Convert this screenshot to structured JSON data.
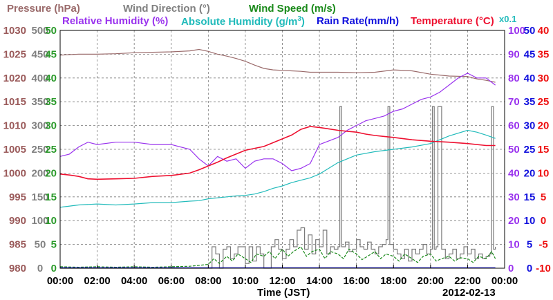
{
  "chart_data": {
    "type": "line",
    "legend": {
      "pressure": "Pressure (hPa)",
      "wind_direction": "Wind Direction (°)",
      "wind_speed": "Wind Speed (m/s)",
      "relative_humidity": "Relative Humidity (%)",
      "absolute_humidity": "Absolute Humidity (g/m",
      "absolute_humidity_sup": "3",
      "absolute_humidity_tail": ")",
      "rain_rate": "Rain Rate(mm/h)",
      "temperature": "Temperature (°C)",
      "rain_scale_note": "x0.1"
    },
    "xlabel": "Time (JST)",
    "date_label": "2012-02-13",
    "x_ticks": [
      "00:00",
      "02:00",
      "04:00",
      "06:00",
      "08:00",
      "10:00",
      "12:00",
      "14:00",
      "16:00",
      "18:00",
      "20:00",
      "22:00",
      "00:00"
    ],
    "axes": {
      "pressure": {
        "range": [
          980,
          1030
        ],
        "ticks": [
          "1030",
          "1025",
          "1020",
          "1015",
          "1010",
          "1005",
          "1000",
          "995",
          "990",
          "985",
          "980"
        ],
        "color": "#9a5a5a"
      },
      "wind_direction": {
        "range": [
          0,
          500
        ],
        "ticks": [
          "500",
          "450",
          "400",
          "350",
          "300",
          "250",
          "200",
          "150",
          "100",
          "50",
          "0"
        ],
        "color": "#808080"
      },
      "wind_speed": {
        "range": [
          0,
          50
        ],
        "ticks": [
          "50",
          "45",
          "40",
          "35",
          "30",
          "25",
          "20",
          "15",
          "10",
          "5",
          "0"
        ],
        "color": "#2a9a2a"
      },
      "relative_humidity": {
        "range": [
          0,
          100
        ],
        "ticks": [
          "100",
          "90",
          "80",
          "70",
          "60",
          "50",
          "40",
          "30",
          "20",
          "10",
          "0"
        ],
        "color": "#9a33ee"
      },
      "rain_rate": {
        "range": [
          0,
          50
        ],
        "ticks": [
          "50",
          "45",
          "40",
          "35",
          "30",
          "25",
          "20",
          "15",
          "10",
          "5",
          "0"
        ],
        "color": "#1010dd"
      },
      "temperature": {
        "range": [
          -10,
          40
        ],
        "ticks": [
          "40",
          "35",
          "30",
          "25",
          "20",
          "15",
          "10",
          "5",
          "0",
          "-5",
          "-10"
        ],
        "color": "#ee1010"
      }
    },
    "colors": {
      "pressure": "#9a6a6a",
      "wind_direction": "#7a7a7a",
      "wind_speed": "#1a8a1a",
      "relative_humidity": "#9a33ee",
      "absolute_humidity": "#22bbbb",
      "rain_rate": "#1010dd",
      "temperature": "#ee1030",
      "abs_humidity_label": "#22bbbb"
    },
    "series": [
      {
        "key": "pressure",
        "axis": "pressure",
        "x": [
          0,
          1,
          2,
          3,
          4,
          5,
          6,
          7,
          7.5,
          8,
          8.5,
          9,
          9.5,
          10,
          10.5,
          11,
          11.5,
          12,
          12.5,
          13,
          13.5,
          14,
          15,
          16,
          17,
          18,
          19,
          20,
          21,
          22,
          22.5,
          23,
          23.5
        ],
        "y": [
          1024.8,
          1025,
          1025,
          1025.1,
          1025.3,
          1025.4,
          1025.5,
          1025.7,
          1026,
          1025.6,
          1025,
          1024.6,
          1024.1,
          1023.5,
          1022.7,
          1022,
          1021.7,
          1021.6,
          1021.5,
          1021.4,
          1021.2,
          1021.2,
          1021.2,
          1021.1,
          1021.2,
          1021.7,
          1021.5,
          1020.8,
          1020.4,
          1020.3,
          1019.8,
          1019.5,
          1019.1
        ]
      },
      {
        "key": "relative_humidity",
        "axis": "relative_humidity",
        "x": [
          0,
          0.5,
          1,
          1.5,
          2,
          3,
          4,
          5,
          6,
          7,
          7.5,
          8,
          8.5,
          9,
          9.5,
          10,
          10.5,
          11,
          11.5,
          12,
          12.5,
          13,
          13.5,
          14,
          15,
          15.5,
          16,
          16.5,
          17,
          17.5,
          18,
          18.5,
          19,
          19.5,
          20,
          20.5,
          21,
          21.5,
          22,
          22.5,
          23,
          23.5
        ],
        "y": [
          47,
          48,
          51,
          53,
          52,
          53,
          53,
          52,
          52,
          50,
          46,
          43,
          47,
          45,
          46,
          42,
          45,
          46,
          46,
          44,
          41,
          42,
          44,
          52,
          55,
          58,
          60,
          62,
          63,
          64,
          66,
          67,
          69,
          71,
          72,
          74,
          77,
          80,
          82,
          80,
          80,
          77
        ]
      },
      {
        "key": "absolute_humidity",
        "axis": "wind_direction",
        "x": [
          0,
          1,
          2,
          3,
          4,
          5,
          6,
          7,
          7.5,
          8,
          8.5,
          9,
          9.5,
          10,
          10.5,
          11,
          11.5,
          12,
          12.5,
          13,
          13.5,
          14,
          14.5,
          15,
          15.5,
          16,
          17,
          18,
          19,
          20,
          21,
          22,
          22.5,
          23,
          23.5
        ],
        "y": [
          128,
          133,
          135,
          133,
          135,
          138,
          138,
          141,
          142,
          146,
          148,
          150,
          152,
          153,
          156,
          161,
          168,
          173,
          180,
          185,
          190,
          198,
          210,
          222,
          230,
          238,
          245,
          250,
          255,
          262,
          278,
          290,
          286,
          280,
          273
        ]
      },
      {
        "key": "temperature",
        "axis": "temperature",
        "x": [
          0,
          0.5,
          1,
          1.5,
          2,
          3,
          4,
          5,
          6,
          7,
          7.5,
          8,
          8.5,
          9,
          9.5,
          10,
          10.5,
          11,
          11.5,
          12,
          12.5,
          13,
          13.5,
          14,
          14.5,
          15,
          15.5,
          16,
          16.5,
          17,
          17.5,
          18,
          19,
          20,
          21,
          22,
          23,
          23.5
        ],
        "y": [
          9.8,
          9.6,
          9.3,
          8.8,
          8.7,
          8.8,
          8.9,
          9.3,
          9.5,
          10,
          10.7,
          11.5,
          12.3,
          13.2,
          14,
          14.8,
          15.2,
          15.6,
          16.4,
          17.2,
          18,
          19.2,
          19.8,
          19.6,
          19.3,
          19,
          18.8,
          18.6,
          18.2,
          17.9,
          17.7,
          17.5,
          17,
          16.7,
          16.5,
          16.2,
          15.8,
          15.8
        ]
      },
      {
        "key": "wind_direction",
        "axis": "wind_direction",
        "x": [
          0,
          8,
          8.2,
          8.4,
          8.6,
          8.8,
          9,
          9.2,
          9.4,
          9.6,
          9.8,
          10,
          10.2,
          10.4,
          10.6,
          10.8,
          11,
          11.2,
          11.4,
          11.6,
          11.8,
          12,
          12.2,
          12.4,
          12.6,
          12.8,
          13,
          13.2,
          13.4,
          13.6,
          13.8,
          14,
          14.2,
          14.4,
          14.6,
          14.8,
          15,
          15.1,
          15.2,
          15.4,
          15.6,
          15.8,
          16,
          16.2,
          16.4,
          16.6,
          16.8,
          17,
          17.2,
          17.4,
          17.6,
          17.7,
          17.8,
          18,
          18.2,
          18.4,
          18.6,
          18.8,
          19,
          19.2,
          19.4,
          19.6,
          19.8,
          20,
          20.1,
          20.2,
          20.3,
          20.4,
          20.6,
          20.8,
          21,
          21.2,
          21.4,
          21.6,
          21.8,
          22,
          22.2,
          22.4,
          22.6,
          22.8,
          23,
          23.2,
          23.3,
          23.4,
          23.5
        ],
        "y": [
          0,
          0,
          45,
          30,
          0,
          40,
          45,
          20,
          30,
          45,
          45,
          10,
          45,
          15,
          45,
          30,
          0,
          0,
          45,
          60,
          40,
          20,
          40,
          60,
          45,
          80,
          85,
          40,
          70,
          30,
          60,
          45,
          80,
          30,
          45,
          40,
          45,
          340,
          45,
          55,
          35,
          40,
          60,
          45,
          40,
          55,
          40,
          30,
          45,
          50,
          60,
          340,
          50,
          40,
          30,
          20,
          40,
          15,
          40,
          30,
          40,
          50,
          30,
          40,
          340,
          40,
          45,
          340,
          40,
          20,
          30,
          40,
          20,
          30,
          45,
          30,
          40,
          20,
          30,
          20,
          25,
          30,
          340,
          40,
          45
        ]
      },
      {
        "key": "wind_speed",
        "axis": "wind_speed",
        "x": [
          0,
          1,
          2,
          3,
          4,
          5,
          6,
          7,
          8,
          8.3,
          8.6,
          9,
          9.3,
          9.6,
          10,
          10.3,
          10.6,
          11,
          11.3,
          11.6,
          12,
          12.3,
          12.6,
          13,
          13.3,
          13.6,
          14,
          14.3,
          14.6,
          15,
          15.3,
          15.6,
          16,
          16.3,
          16.6,
          17,
          17.3,
          17.6,
          18,
          18.3,
          18.6,
          19,
          19.3,
          19.6,
          20,
          20.3,
          20.6,
          21,
          21.3,
          21.6,
          22,
          22.3,
          22.6,
          23,
          23.3,
          23.5
        ],
        "y": [
          0.3,
          0.2,
          0.3,
          0.2,
          0.3,
          0.2,
          0.3,
          0.4,
          0.8,
          2,
          1,
          2.5,
          1.5,
          3,
          2,
          1.2,
          3,
          2.5,
          3.5,
          2,
          4,
          2.5,
          3.5,
          4.5,
          2.5,
          3.5,
          4,
          2,
          3.5,
          3,
          2,
          4,
          3,
          1.8,
          2.5,
          3.5,
          2,
          3,
          2.5,
          1.5,
          3,
          2,
          1.2,
          2.5,
          3,
          1.5,
          2,
          2.5,
          1.5,
          2.2,
          2,
          1.2,
          2.5,
          2,
          3.5,
          2
        ]
      },
      {
        "key": "rain_rate",
        "axis": "rain_rate",
        "x": [
          0,
          23.5
        ],
        "y": [
          0.1,
          0.1
        ]
      }
    ]
  }
}
